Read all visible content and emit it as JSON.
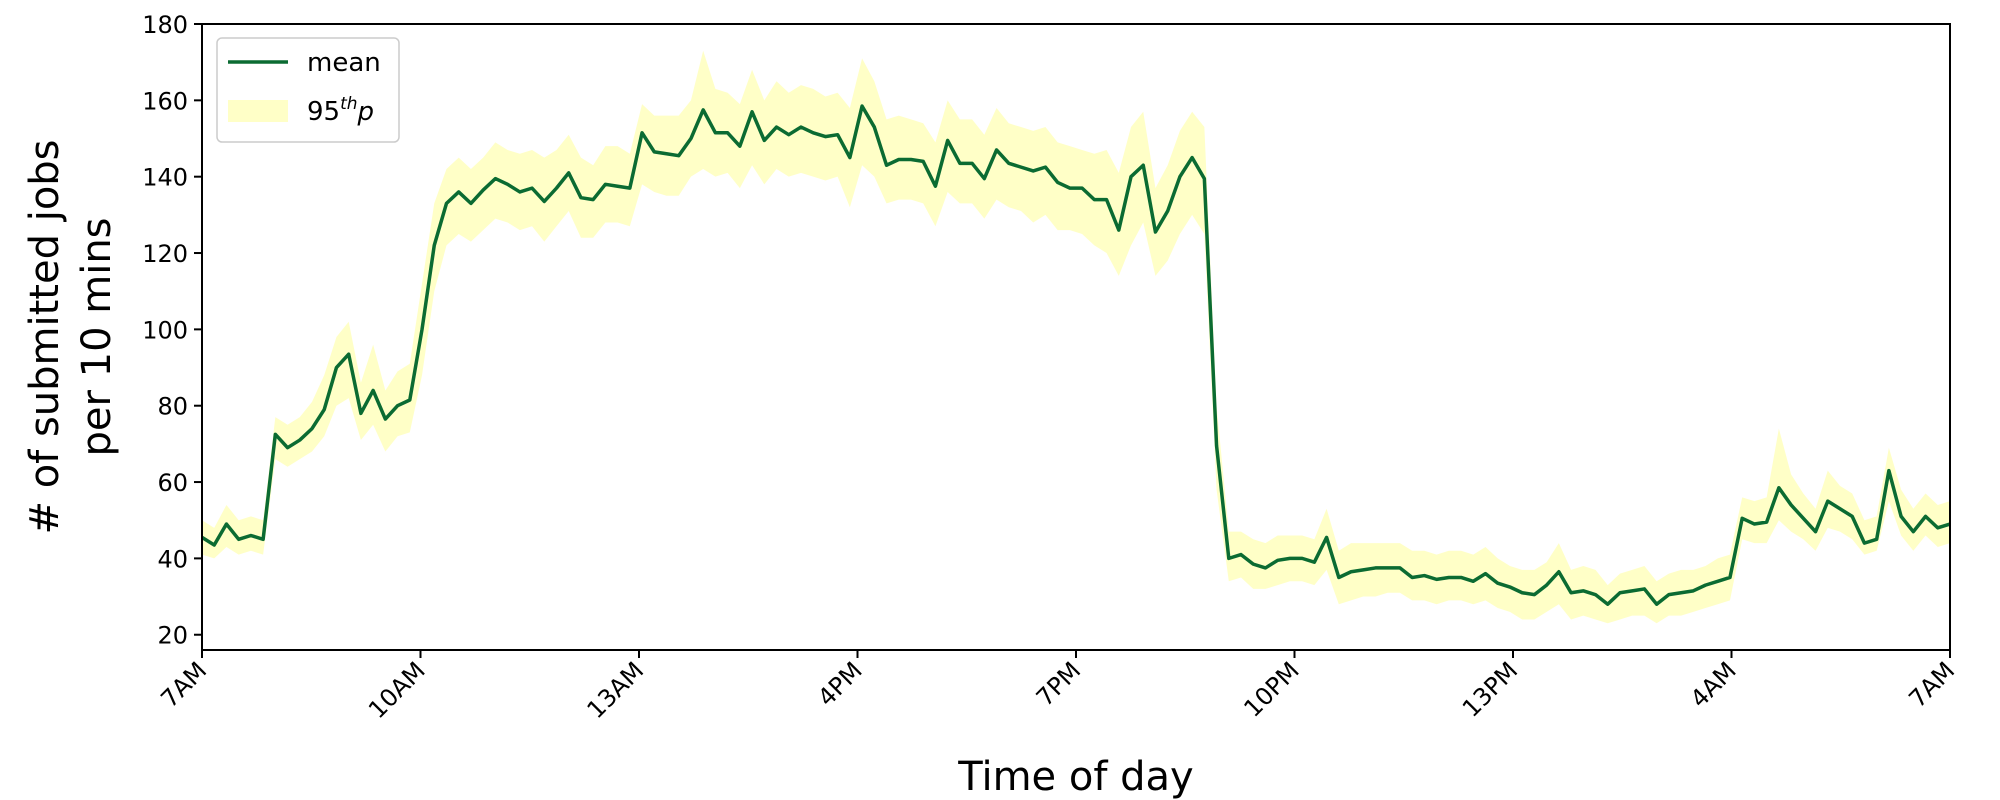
{
  "chart_data": {
    "type": "line",
    "xlabel": "Time of day",
    "ylabel_lines": [
      "# of submitted jobs",
      "per 10 mins"
    ],
    "ylim": [
      16,
      180
    ],
    "yticks": [
      20,
      40,
      60,
      80,
      100,
      120,
      140,
      160,
      180
    ],
    "xticks": [
      "7AM",
      "10AM",
      "13AM",
      "4PM",
      "7PM",
      "10PM",
      "13PM",
      "4AM",
      "7AM"
    ],
    "grid": false,
    "legend_position": "top-left",
    "colors": {
      "mean_line": "#0b6b32",
      "band_fill": "#ffffc7",
      "axis": "#000000",
      "legend_border": "#cccccc"
    },
    "series": [
      {
        "name": "mean",
        "kind": "line",
        "values": [
          45.5,
          43.5,
          49,
          45,
          46,
          45,
          72.5,
          69,
          71,
          74,
          79,
          90,
          93.5,
          78,
          84,
          76.5,
          80,
          81.5,
          100,
          122,
          133,
          136,
          133,
          136.5,
          139.5,
          138,
          136,
          137,
          133.5,
          137,
          141,
          134.5,
          134,
          138,
          137.5,
          137,
          151.5,
          146.5,
          146,
          145.5,
          150,
          157.5,
          151.5,
          151.5,
          148,
          157,
          149.5,
          153,
          151,
          153,
          151.5,
          150.5,
          151,
          145,
          158.5,
          153,
          143,
          144.5,
          144.5,
          144,
          137.5,
          149.5,
          143.5,
          143.5,
          139.5,
          147,
          143.5,
          142.5,
          141.5,
          142.5,
          138.5,
          137,
          137,
          134,
          134,
          126,
          140,
          143,
          125.5,
          131,
          140,
          145,
          139.5,
          69.5,
          40,
          41,
          38.5,
          37.5,
          39.5,
          40,
          40,
          39,
          45.5,
          35,
          36.5,
          37,
          37.5,
          37.5,
          37.5,
          35,
          35.5,
          34.5,
          35,
          35,
          34,
          36,
          33.5,
          32.5,
          31,
          30.5,
          33,
          36.5,
          31,
          31.5,
          30.5,
          28,
          31,
          31.5,
          32,
          28,
          30.5,
          31,
          31.5,
          33,
          34,
          35,
          50.5,
          49,
          49.5,
          58.5,
          54,
          50.5,
          47,
          55,
          53,
          51,
          44,
          45,
          63,
          51,
          47,
          51,
          48,
          49
        ]
      },
      {
        "name": "95thp",
        "label_base": "95",
        "label_sup": "th",
        "label_italic": "p",
        "kind": "band",
        "lower": [
          41,
          40,
          43,
          41,
          42,
          41,
          66,
          64,
          66,
          68,
          72,
          80,
          82,
          71,
          75,
          68,
          72,
          73,
          88,
          110,
          122,
          125,
          123,
          126,
          129,
          128,
          126,
          127,
          123,
          127,
          131,
          124,
          124,
          128,
          128,
          127,
          138,
          136,
          135,
          135,
          140,
          142,
          140,
          141,
          137,
          143,
          138,
          142,
          140,
          141,
          140,
          139,
          140,
          132,
          143,
          140,
          133,
          134,
          134,
          133,
          127,
          136,
          133,
          133,
          129,
          134,
          132,
          131,
          128,
          130,
          126,
          126,
          125,
          122,
          120,
          114,
          122,
          128,
          114,
          118,
          125,
          130,
          125,
          58,
          34,
          35,
          32,
          32,
          33,
          34,
          34,
          33,
          37,
          28,
          29,
          30,
          30,
          31,
          31,
          29,
          29,
          28,
          29,
          29,
          28,
          29,
          27,
          26,
          24,
          24,
          26,
          28,
          24,
          25,
          24,
          23,
          24,
          25,
          25,
          23,
          25,
          25,
          26,
          27,
          28,
          29,
          45,
          44,
          44,
          50,
          47,
          45,
          42,
          48,
          47,
          45,
          41,
          42,
          55,
          46,
          42,
          46,
          43,
          44
        ],
        "upper": [
          50,
          48,
          54,
          50,
          51,
          50,
          77,
          75,
          77,
          81,
          88,
          98,
          102,
          86,
          96,
          84,
          89,
          91,
          112,
          133,
          142,
          145,
          142,
          145,
          149,
          147,
          146,
          147,
          145,
          147,
          151,
          145,
          143,
          148,
          148,
          146,
          159,
          156,
          156,
          156,
          160,
          173,
          163,
          162,
          159,
          168,
          160,
          165,
          162,
          164,
          163,
          161,
          162,
          158,
          171,
          165,
          155,
          156,
          155,
          154,
          149,
          160,
          155,
          155,
          151,
          158,
          154,
          153,
          152,
          153,
          149,
          148,
          147,
          146,
          147,
          141,
          153,
          157,
          137,
          143,
          152,
          157,
          153,
          80,
          47,
          47,
          45,
          44,
          46,
          46,
          46,
          45,
          53,
          42,
          44,
          44,
          44,
          44,
          44,
          42,
          42,
          41,
          42,
          42,
          41,
          43,
          40,
          38,
          37,
          37,
          39,
          44,
          37,
          38,
          37,
          33,
          36,
          37,
          38,
          34,
          36,
          37,
          37,
          38,
          40,
          41,
          56,
          55,
          56,
          74,
          62,
          57,
          53,
          63,
          59,
          57,
          50,
          51,
          69,
          58,
          53,
          57,
          54,
          55
        ]
      }
    ]
  }
}
